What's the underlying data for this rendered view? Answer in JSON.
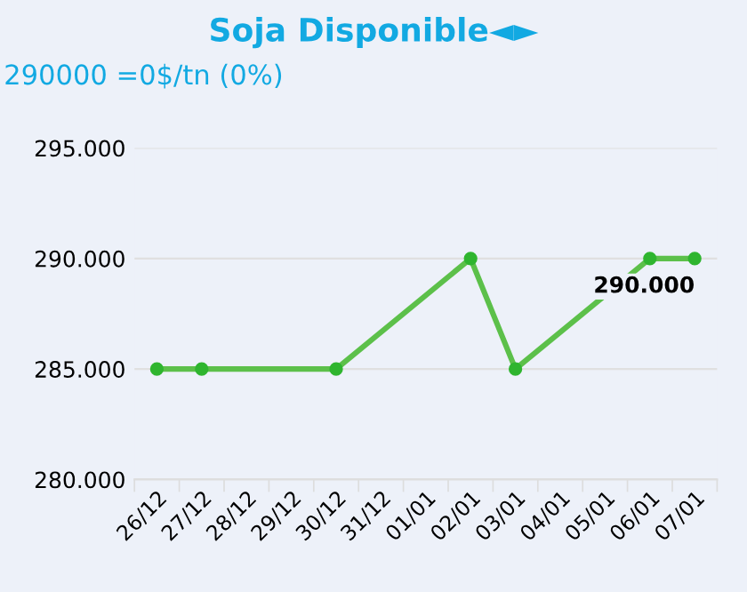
{
  "chart_data": {
    "type": "line",
    "title": "Soja Disponible◄►",
    "subtitle": "290000 =0$/tn (0%)",
    "categories": [
      "26/12",
      "27/12",
      "28/12",
      "29/12",
      "30/12",
      "31/12",
      "01/01",
      "02/01",
      "03/01",
      "04/01",
      "05/01",
      "06/01",
      "07/01"
    ],
    "series": [
      {
        "color": "#5cc04a",
        "values": [
          285000,
          285000,
          null,
          null,
          285000,
          null,
          null,
          290000,
          285000,
          null,
          null,
          290000,
          290000
        ],
        "value_labels": [
          null,
          null,
          null,
          null,
          null,
          null,
          null,
          null,
          null,
          null,
          null,
          null,
          "290.000"
        ]
      }
    ],
    "ylim": [
      280000,
      295000
    ],
    "yticks": [
      {
        "value": 280000,
        "label": "280.000"
      },
      {
        "value": 285000,
        "label": "285.000"
      },
      {
        "value": 290000,
        "label": "290.000"
      },
      {
        "value": 295000,
        "label": "295.000"
      }
    ],
    "grid": "y",
    "marker": "circle",
    "line_style": "solid",
    "legend": false
  }
}
